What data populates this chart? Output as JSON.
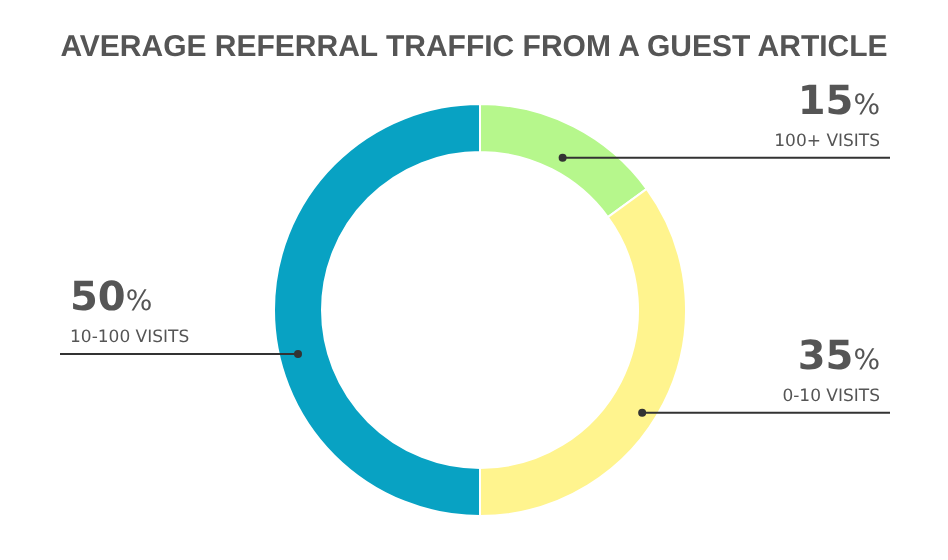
{
  "chart_data": {
    "type": "donut",
    "title": "AVERAGE REFERRAL TRAFFIC FROM A GUEST ARTICLE",
    "categories": [
      "100+ VISITS",
      "0-10 VISITS",
      "10-100 VISITS"
    ],
    "values": [
      15,
      35,
      50
    ],
    "colors": [
      "#b6f78c",
      "#fff48e",
      "#08a2c3"
    ],
    "value_labels": [
      "15%",
      "35%",
      "50%"
    ],
    "legend": false
  }
}
